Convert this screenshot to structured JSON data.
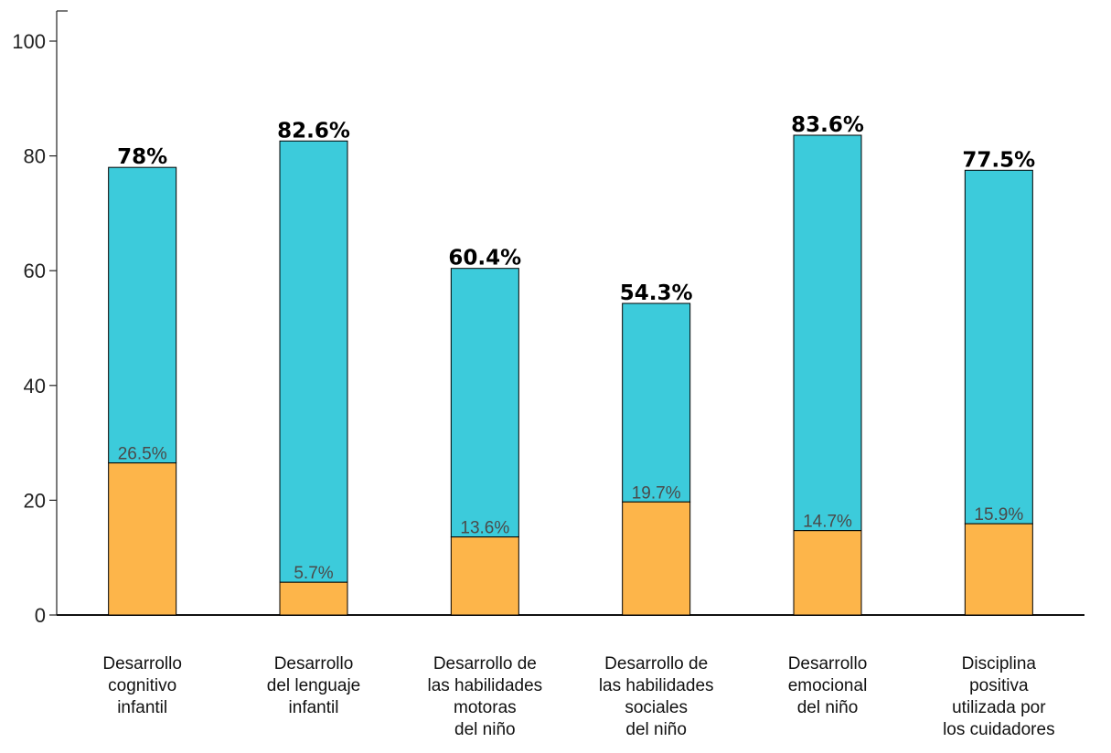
{
  "chart_data": {
    "type": "bar",
    "stacked": true,
    "categories": [
      [
        "Desarrollo",
        "cognitivo",
        "infantil"
      ],
      [
        "Desarrollo",
        "del lenguaje",
        "infantil"
      ],
      [
        "Desarrollo de",
        "las habilidades",
        "motoras",
        "del niño"
      ],
      [
        "Desarrollo de",
        "las habilidades",
        "sociales",
        "del niño"
      ],
      [
        "Desarrollo",
        "emocional",
        "del niño"
      ],
      [
        "Disciplina",
        "positiva",
        "utilizada por",
        "los cuidadores"
      ]
    ],
    "series": [
      {
        "values": [
          26.5,
          5.7,
          13.6,
          19.7,
          14.7,
          15.9
        ],
        "labels": [
          "26.5%",
          "5.7%",
          "13.6%",
          "19.7%",
          "14.7%",
          "15.9%"
        ]
      },
      {
        "values": [
          78,
          82.6,
          60.4,
          54.3,
          83.6,
          77.5
        ],
        "labels": [
          "78%",
          "82.6%",
          "60.4%",
          "54.3%",
          "83.6%",
          "77.5%"
        ]
      }
    ],
    "yticks": [
      "0",
      "20",
      "40",
      "60",
      "80",
      "100"
    ],
    "ylim": [
      0,
      100
    ],
    "grid": false,
    "colors": {
      "lower": "#fdb54a",
      "upper": "#3ccbdb",
      "outline": "#000000"
    }
  }
}
